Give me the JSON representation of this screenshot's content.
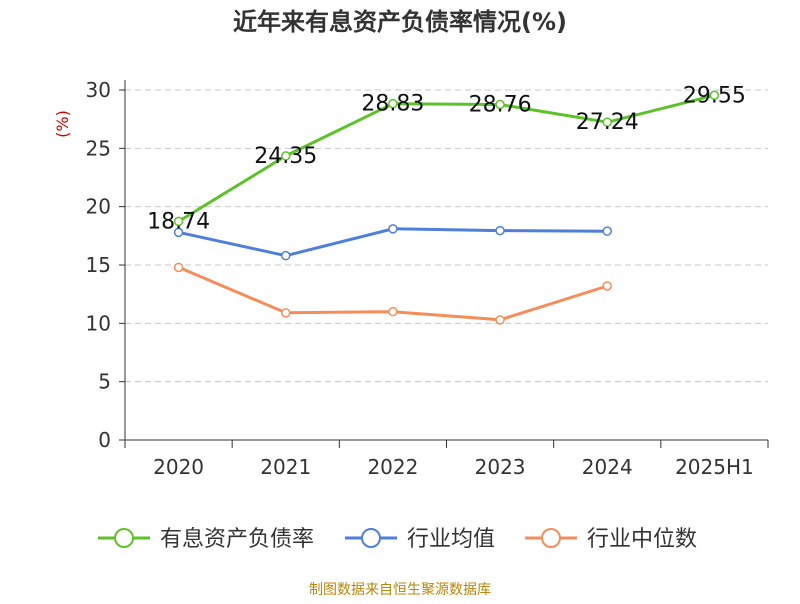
{
  "chart_data": {
    "type": "line",
    "title": "近年来有息资产负债率情况(%)",
    "ylabel": "(%)",
    "categories": [
      "2020",
      "2021",
      "2022",
      "2023",
      "2024",
      "2025H1"
    ],
    "ylim": [
      0,
      30
    ],
    "yticks": [
      0,
      5,
      10,
      15,
      20,
      25,
      30
    ],
    "grid": true,
    "legend_position": "bottom",
    "series": [
      {
        "name": "有息资产负债率",
        "color": "#5cc227",
        "values": [
          18.74,
          24.35,
          28.83,
          28.76,
          27.24,
          29.55
        ],
        "labels": [
          "18.74",
          "24.35",
          "28.83",
          "28.76",
          "27.24",
          "29.55"
        ]
      },
      {
        "name": "行业均值",
        "color": "#4f7fd9",
        "values": [
          17.8,
          15.8,
          18.1,
          17.95,
          17.9,
          null
        ]
      },
      {
        "name": "行业中位数",
        "color": "#f58d5a",
        "values": [
          14.8,
          10.9,
          11.0,
          10.3,
          13.2,
          null
        ]
      }
    ],
    "source": "制图数据来自恒生聚源数据库"
  }
}
